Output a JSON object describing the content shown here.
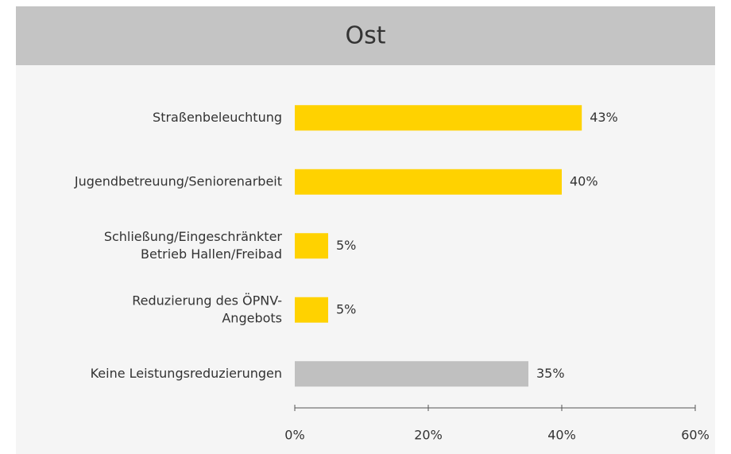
{
  "chart_data": {
    "type": "hbar",
    "title": "Ost",
    "categories": [
      [
        "Straßenbeleuchtung"
      ],
      [
        "Jugendbetreuung/Seniorenarbeit"
      ],
      [
        "Schließung/Eingeschränkter",
        "Betrieb Hallen/Freibad"
      ],
      [
        "Reduzierung des ÖPNV-",
        "Angebots"
      ],
      [
        "Keine Leistungsreduzierungen"
      ]
    ],
    "values": [
      43,
      40,
      5,
      5,
      35
    ],
    "value_labels": [
      "43%",
      "40%",
      "5%",
      "5%",
      "35%"
    ],
    "colors": [
      "#ffd200",
      "#ffd200",
      "#ffd200",
      "#ffd200",
      "#c0c0c0"
    ],
    "xlim": [
      0,
      60
    ],
    "xticks": [
      {
        "value": 0,
        "label": "0%"
      },
      {
        "value": 20,
        "label": "20%"
      },
      {
        "value": 40,
        "label": "40%"
      },
      {
        "value": 60,
        "label": "60%"
      }
    ]
  }
}
